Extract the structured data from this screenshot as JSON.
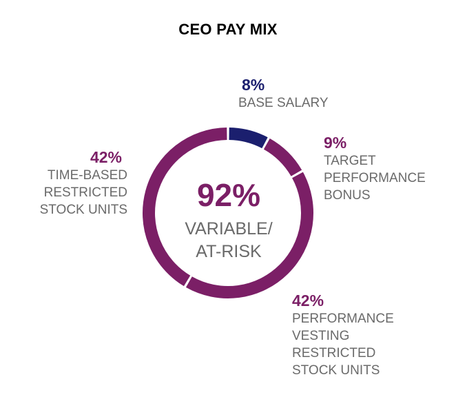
{
  "title": "CEO PAY MIX",
  "center": {
    "percent": "92%",
    "line1": "VARIABLE/",
    "line2": "AT-RISK"
  },
  "callouts": {
    "base_salary": {
      "pct": "8%",
      "lines": [
        "BASE SALARY"
      ]
    },
    "target_bonus": {
      "pct": "9%",
      "lines": [
        "TARGET",
        "PERFORMANCE",
        "BONUS"
      ]
    },
    "performance_rsu": {
      "pct": "42%",
      "lines": [
        "PERFORMANCE",
        "VESTING",
        "RESTRICTED",
        "STOCK UNITS"
      ]
    },
    "time_rsu": {
      "pct": "42%",
      "lines": [
        "TIME-BASED",
        "RESTRICTED",
        "STOCK UNITS"
      ]
    }
  },
  "colors": {
    "navy": "#1b1f6e",
    "purple": "#7b1f66",
    "gray_text": "#6a6a6a"
  },
  "chart_data": {
    "type": "pie",
    "title": "CEO PAY MIX",
    "donut": true,
    "categories": [
      "BASE SALARY",
      "TARGET PERFORMANCE BONUS",
      "PERFORMANCE VESTING RESTRICTED STOCK UNITS",
      "TIME-BASED RESTRICTED STOCK UNITS"
    ],
    "values": [
      8,
      9,
      42,
      42
    ],
    "colors": [
      "#1b1f6e",
      "#7b1f66",
      "#7b1f66",
      "#7b1f66"
    ],
    "center_label": "92% VARIABLE/ AT-RISK"
  }
}
